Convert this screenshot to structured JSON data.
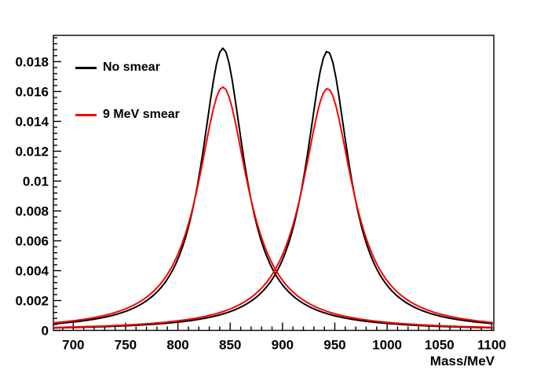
{
  "figure": {
    "background": "#ffffff",
    "frame_color": "#000000"
  },
  "chart_data": {
    "type": "line",
    "title": "",
    "xlabel": "Mass/MeV",
    "ylabel": "",
    "xlim": [
      681,
      1102
    ],
    "ylim": [
      0,
      0.01976
    ],
    "grid": false,
    "x_ticks_major": [
      700,
      750,
      800,
      850,
      900,
      950,
      1000,
      1050,
      1100
    ],
    "x_tick_labels": [
      "700",
      "750",
      "800",
      "850",
      "900",
      "950",
      "1000",
      "1050",
      "1100"
    ],
    "x_tick_minor_step": 10,
    "y_ticks_major": [
      0,
      0.002,
      0.004,
      0.006,
      0.008,
      0.01,
      0.012,
      0.014,
      0.016,
      0.018
    ],
    "y_tick_labels": [
      "0",
      "0.002",
      "0.004",
      "0.006",
      "0.008",
      "0.01",
      "0.012",
      "0.014",
      "0.016",
      "0.018"
    ],
    "y_tick_minor_step": 0.0004,
    "curve_model": "lorentzian: y = amplitude * hwhm^2 / ((x - peak_mass)^2 + hwhm^2)",
    "sample_step_mev": 3,
    "series": [
      {
        "name": "no-smear-peak1",
        "legend": "No smear",
        "color": "#000000",
        "line_width": 2,
        "peak_mass": 843,
        "amplitude": 0.0189,
        "hwhm": 25
      },
      {
        "name": "no-smear-peak2",
        "legend": "No smear",
        "color": "#000000",
        "line_width": 2,
        "peak_mass": 943,
        "amplitude": 0.0187,
        "hwhm": 25
      },
      {
        "name": "smear9-peak1",
        "legend": "9 MeV smear",
        "color": "#ff0000",
        "line_width": 2,
        "peak_mass": 843,
        "amplitude": 0.0163,
        "hwhm": 29
      },
      {
        "name": "smear9-peak2",
        "legend": "9 MeV smear",
        "color": "#ff0000",
        "line_width": 2,
        "peak_mass": 943,
        "amplitude": 0.0162,
        "hwhm": 29
      }
    ],
    "legend": {
      "position": "top-left",
      "border": false,
      "entries": [
        {
          "label": "No smear",
          "color": "#000000"
        },
        {
          "label": "9 MeV smear",
          "color": "#ff0000"
        }
      ]
    }
  }
}
